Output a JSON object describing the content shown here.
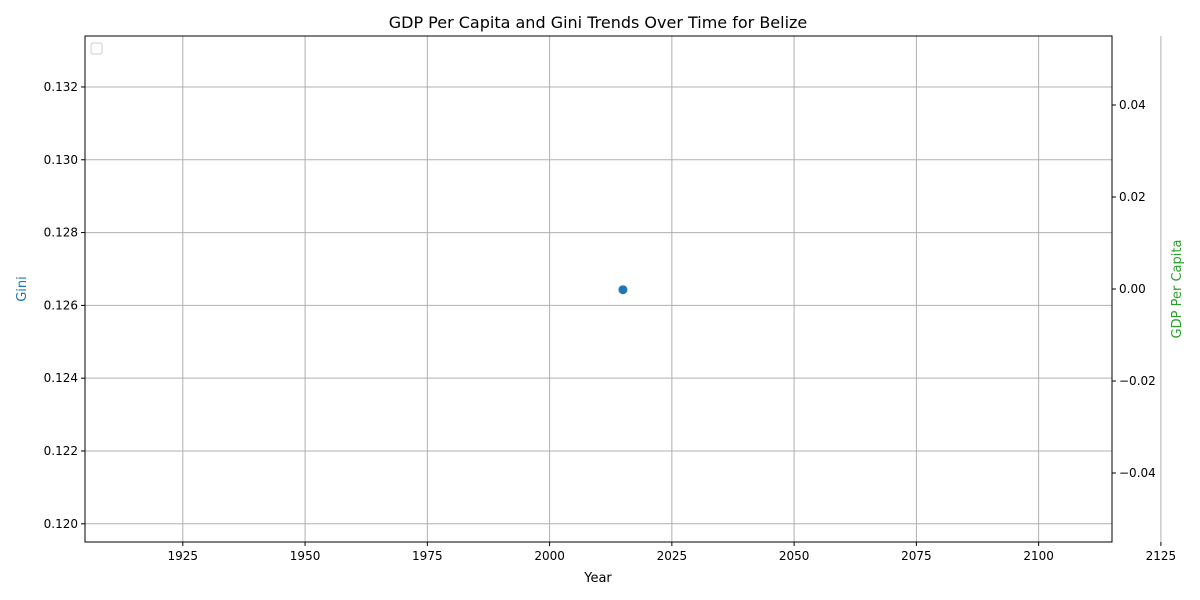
{
  "chart_data": {
    "type": "scatter",
    "title": "GDP Per Capita and Gini Trends Over Time for Belize",
    "xlabel": "Year",
    "ylabel_left": "Gini",
    "ylabel_right": "GDP Per Capita",
    "xlim": [
      1905,
      2115
    ],
    "ylim_left": [
      0.1195,
      0.1334
    ],
    "ylim_right": [
      -0.055,
      0.055
    ],
    "x_ticks": [
      1925,
      1950,
      1975,
      2000,
      2025,
      2050,
      2075,
      2100,
      2125
    ],
    "y_left_ticks": [
      0.12,
      0.122,
      0.124,
      0.126,
      0.128,
      0.13,
      0.132
    ],
    "y_right_ticks": [
      -0.04,
      -0.02,
      0.0,
      0.02,
      0.04
    ],
    "x_tick_labels": [
      "1925",
      "1950",
      "1975",
      "2000",
      "2025",
      "2050",
      "2075",
      "2100",
      "2125"
    ],
    "y_left_tick_labels": [
      "0.120",
      "0.122",
      "0.124",
      "0.126",
      "0.128",
      "0.130",
      "0.132"
    ],
    "y_right_tick_labels": [
      "−0.04",
      "−0.02",
      "0.00",
      "0.02",
      "0.04"
    ],
    "grid": true,
    "legend": "top-left",
    "series": [
      {
        "axis": "left",
        "color": "#1f77b4",
        "points": [
          {
            "x": 2015,
            "y": 0.12643
          }
        ]
      },
      {
        "axis": "right",
        "color": "#2ca02c",
        "points": []
      }
    ],
    "colors": {
      "left_axis_label": "#1f77b4",
      "right_axis_label": "#2ca02c",
      "grid": "#b0b0b0"
    }
  }
}
